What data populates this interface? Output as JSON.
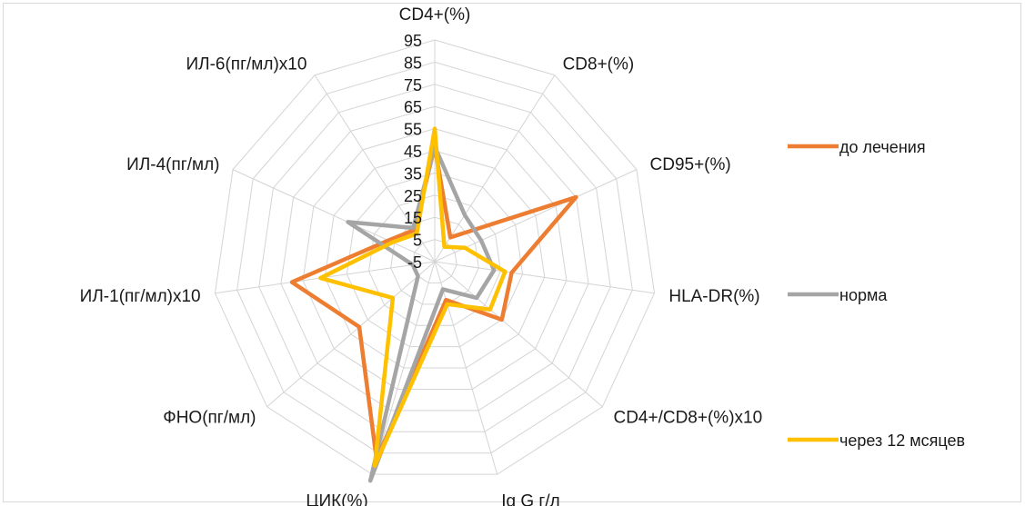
{
  "chart_data": {
    "type": "radar",
    "categories": [
      "CD4+(%)",
      "CD8+(%)",
      "CD95+(%)",
      "HLA-DR(%)",
      "CD4+/CD8+(%)x10",
      "Ig G г/л",
      "ЦИК(%)",
      "ФНО(пг/мл)",
      "ИЛ-1(пг/мл)x10",
      "ИЛ-4(пг/мл)",
      "ИЛ-6(пг/мл)x10"
    ],
    "ticks": [
      "-5",
      "5",
      "15",
      "25",
      "35",
      "45",
      "55",
      "65",
      "75",
      "85",
      "95"
    ],
    "rlim": [
      -5,
      95
    ],
    "grid": true,
    "legend_position": "right",
    "series": [
      {
        "name": "до лечения",
        "color": "#ed7d31",
        "values": [
          47,
          8,
          65,
          30,
          35,
          13,
          88,
          40,
          60,
          18,
          12
        ]
      },
      {
        "name": "норма",
        "color": "#a5a5a5",
        "values": [
          47,
          20,
          18,
          22,
          20,
          8,
          98,
          5,
          5,
          38,
          13
        ]
      },
      {
        "name": "через 12 мсяцев",
        "color": "#ffc000",
        "values": [
          55,
          3,
          10,
          27,
          28,
          15,
          91,
          20,
          47,
          16,
          10
        ]
      }
    ]
  }
}
